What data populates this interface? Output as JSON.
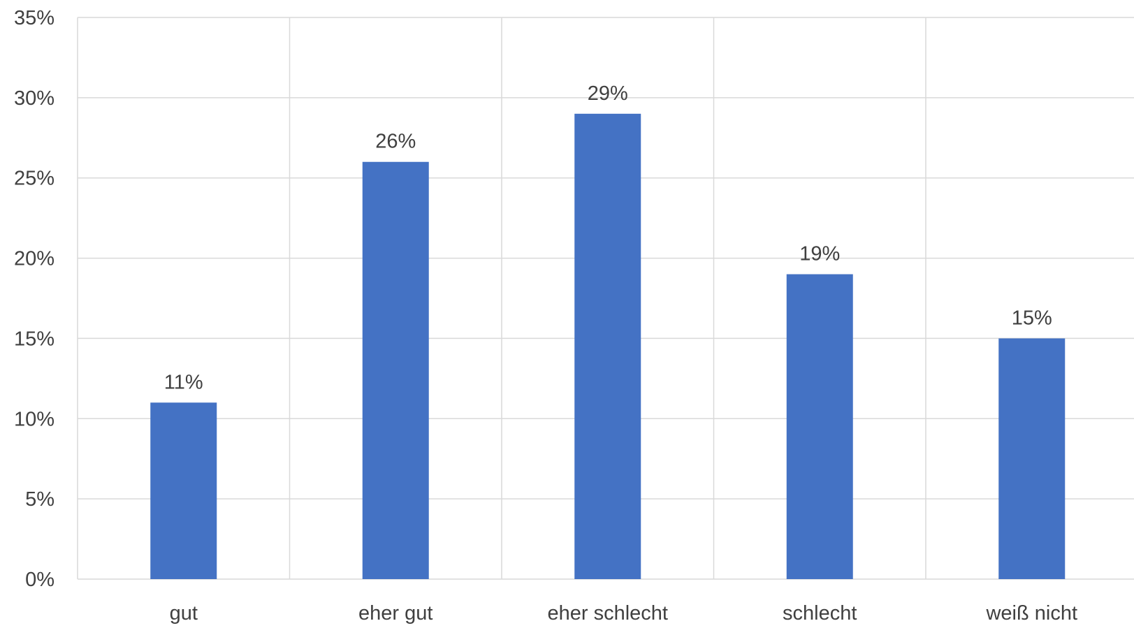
{
  "chart_data": {
    "type": "bar",
    "title": "",
    "xlabel": "",
    "ylabel": "",
    "categories": [
      "gut",
      "eher gut",
      "eher schlecht",
      "schlecht",
      "weiß nicht"
    ],
    "values": [
      11,
      26,
      29,
      19,
      15
    ],
    "value_labels": [
      "11%",
      "26%",
      "29%",
      "19%",
      "15%"
    ],
    "ylim": [
      0,
      35
    ],
    "yticks": [
      0,
      5,
      10,
      15,
      20,
      25,
      30,
      35
    ],
    "ytick_labels": [
      "0%",
      "5%",
      "10%",
      "15%",
      "20%",
      "25%",
      "30%",
      "35%"
    ],
    "grid": true,
    "legend": "none",
    "bar_color": "#4472C4",
    "grid_color": "#D9D9D9",
    "text_color": "#404040"
  }
}
